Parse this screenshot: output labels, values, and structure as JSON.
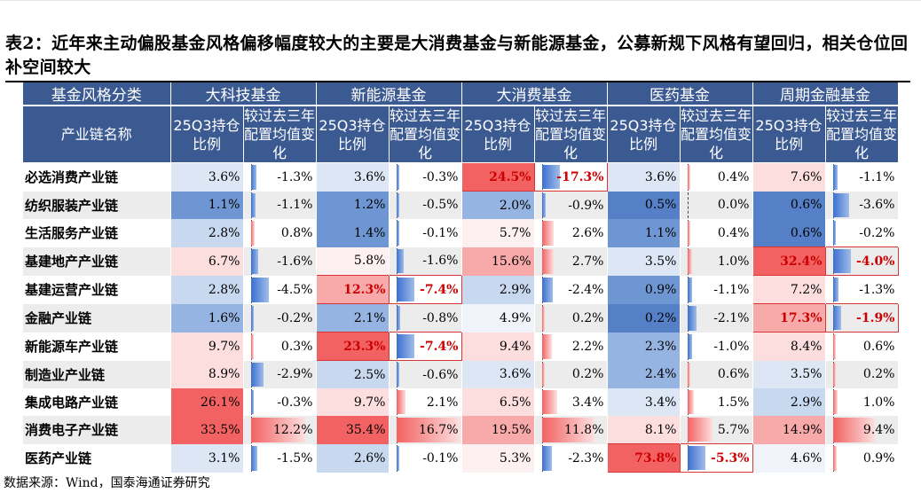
{
  "title": "表2：近年来主动偏股基金风格偏移幅度较大的主要是大消费基金与新能源基金，公募新规下风格有望回归，相关仓位回补空间较大",
  "header": {
    "group_label": "基金风格分类",
    "row_label": "产业链名称",
    "col_hold": "25Q3持仓比例",
    "col_change": "较过去三年配置均值变化"
  },
  "groups": [
    "大科技基金",
    "新能源基金",
    "大消费基金",
    "医药基金",
    "周期金融基金"
  ],
  "rows": [
    {
      "name": "必选消费产业链",
      "vals": [
        [
          "3.6%",
          "-1.3%"
        ],
        [
          "3.6%",
          "-0.3%"
        ],
        [
          "24.5%",
          "-17.3%"
        ],
        [
          "3.6%",
          "0.4%"
        ],
        [
          "7.6%",
          "-1.1%"
        ]
      ]
    },
    {
      "name": "纺织服装产业链",
      "vals": [
        [
          "1.1%",
          "-1.1%"
        ],
        [
          "1.2%",
          "-0.5%"
        ],
        [
          "2.0%",
          "-0.9%"
        ],
        [
          "0.5%",
          "0.0%"
        ],
        [
          "0.6%",
          "-3.6%"
        ]
      ]
    },
    {
      "name": "生活服务产业链",
      "vals": [
        [
          "2.8%",
          "0.8%"
        ],
        [
          "1.4%",
          "-0.1%"
        ],
        [
          "5.7%",
          "2.6%"
        ],
        [
          "1.1%",
          "0.4%"
        ],
        [
          "0.6%",
          "-0.2%"
        ]
      ]
    },
    {
      "name": "基建地产产业链",
      "vals": [
        [
          "6.7%",
          "-1.6%"
        ],
        [
          "5.8%",
          "-1.6%"
        ],
        [
          "15.6%",
          "2.7%"
        ],
        [
          "3.5%",
          "1.0%"
        ],
        [
          "32.4%",
          "-4.0%"
        ]
      ]
    },
    {
      "name": "基建运营产业链",
      "vals": [
        [
          "2.8%",
          "-4.5%"
        ],
        [
          "12.3%",
          "-7.4%"
        ],
        [
          "2.9%",
          "-2.4%"
        ],
        [
          "0.9%",
          "-1.1%"
        ],
        [
          "7.2%",
          "-1.3%"
        ]
      ]
    },
    {
      "name": "金融产业链",
      "vals": [
        [
          "1.6%",
          "-0.2%"
        ],
        [
          "2.1%",
          "-0.8%"
        ],
        [
          "4.9%",
          "0.2%"
        ],
        [
          "0.2%",
          "-2.1%"
        ],
        [
          "17.3%",
          "-1.9%"
        ]
      ]
    },
    {
      "name": "新能源车产业链",
      "vals": [
        [
          "9.7%",
          "0.3%"
        ],
        [
          "23.3%",
          "-7.4%"
        ],
        [
          "9.4%",
          "2.2%"
        ],
        [
          "2.3%",
          "-1.0%"
        ],
        [
          "8.4%",
          "0.6%"
        ]
      ]
    },
    {
      "name": "制造业产业链",
      "vals": [
        [
          "8.9%",
          "-2.9%"
        ],
        [
          "2.5%",
          "-0.6%"
        ],
        [
          "3.6%",
          "0.2%"
        ],
        [
          "2.4%",
          "0.6%"
        ],
        [
          "3.5%",
          "0.2%"
        ]
      ]
    },
    {
      "name": "集成电路产业链",
      "vals": [
        [
          "26.1%",
          "-0.3%"
        ],
        [
          "9.7%",
          "2.1%"
        ],
        [
          "6.5%",
          "3.4%"
        ],
        [
          "3.4%",
          "1.5%"
        ],
        [
          "2.9%",
          "1.0%"
        ]
      ]
    },
    {
      "name": "消费电子产业链",
      "vals": [
        [
          "33.5%",
          "12.2%"
        ],
        [
          "35.4%",
          "16.7%"
        ],
        [
          "19.5%",
          "11.8%"
        ],
        [
          "8.1%",
          "5.7%"
        ],
        [
          "14.9%",
          "9.4%"
        ]
      ]
    },
    {
      "name": "医药产业链",
      "vals": [
        [
          "3.1%",
          "-1.5%"
        ],
        [
          "2.6%",
          "-0.1%"
        ],
        [
          "5.3%",
          "-2.3%"
        ],
        [
          "73.8%",
          "-5.3%"
        ],
        [
          "4.6%",
          "0.9%"
        ]
      ]
    }
  ],
  "highlights": [
    [
      0,
      2
    ],
    [
      3,
      4
    ],
    [
      4,
      1
    ],
    [
      5,
      4
    ],
    [
      6,
      1
    ],
    [
      10,
      3
    ]
  ],
  "source": "数据来源：Wind，国泰海通证券研究"
}
